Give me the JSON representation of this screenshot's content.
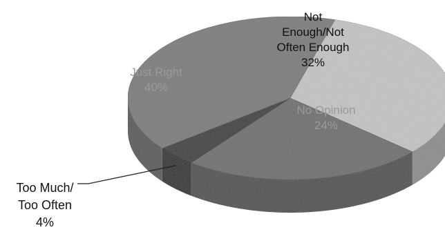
{
  "chart_data": {
    "type": "pie",
    "title": "",
    "slices": [
      {
        "label": [
          "Not",
          "Enough/Not",
          "Often Enough"
        ],
        "value_label": "32%",
        "value": 32,
        "color": "#c3c3c3"
      },
      {
        "label": [
          "No Opinion"
        ],
        "value_label": "24%",
        "value": 24,
        "color": "#6e6e6e"
      },
      {
        "label": [
          "Too Much/",
          "Too Often"
        ],
        "value_label": "4%",
        "value": 4,
        "color": "#3a3a3a"
      },
      {
        "label": [
          "Just Right"
        ],
        "value_label": "40%",
        "value": 40,
        "color": "#7b7b7b"
      }
    ]
  }
}
